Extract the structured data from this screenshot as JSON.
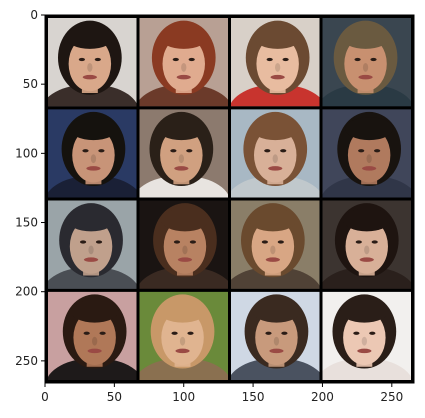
{
  "image": {
    "description_kind": "4x4 grid of generated face samples",
    "background_color": "#000000",
    "frame_color": "#000000"
  },
  "axes": {
    "x_ticks": [
      {
        "value": 0,
        "label": "0"
      },
      {
        "value": 50,
        "label": "50"
      },
      {
        "value": 100,
        "label": "100"
      },
      {
        "value": 150,
        "label": "150"
      },
      {
        "value": 200,
        "label": "200"
      },
      {
        "value": 250,
        "label": "250"
      }
    ],
    "y_ticks": [
      {
        "value": 0,
        "label": "0"
      },
      {
        "value": 50,
        "label": "50"
      },
      {
        "value": 100,
        "label": "100"
      },
      {
        "value": 150,
        "label": "150"
      },
      {
        "value": 200,
        "label": "200"
      },
      {
        "value": 250,
        "label": "250"
      }
    ],
    "x_range": [
      0,
      266
    ],
    "y_range": [
      0,
      266
    ]
  },
  "grid": {
    "rows": 4,
    "cols": 4,
    "cells": [
      {
        "bg": "#d8d4d0",
        "hair": "#1e1612",
        "skin": "#d9a88a",
        "cloth": "#3a2e2a"
      },
      {
        "bg": "#b8a094",
        "hair": "#8a3a22",
        "skin": "#e0ab8f",
        "cloth": "#6b3a2a"
      },
      {
        "bg": "#d8d0c8",
        "hair": "#6b4a32",
        "skin": "#e8bca0",
        "cloth": "#c8342e"
      },
      {
        "bg": "#3a4650",
        "hair": "#6a5a40",
        "skin": "#c89070",
        "cloth": "#2a3a44"
      },
      {
        "bg": "#2a3a64",
        "hair": "#15120e",
        "skin": "#c89478",
        "cloth": "#1a2036"
      },
      {
        "bg": "#8c7a6e",
        "hair": "#2a2018",
        "skin": "#d0a080",
        "cloth": "#e8e4e0"
      },
      {
        "bg": "#a8b8c4",
        "hair": "#7a5236",
        "skin": "#d8b098",
        "cloth": "#c0c8cc"
      },
      {
        "bg": "#40465a",
        "hair": "#18130f",
        "skin": "#b07a5e",
        "cloth": "#303648"
      },
      {
        "bg": "#9aa4a8",
        "hair": "#2a2a30",
        "skin": "#c0a08c",
        "cloth": "#4a4e54"
      },
      {
        "bg": "#1a1412",
        "hair": "#4a2e1e",
        "skin": "#b88262",
        "cloth": "#3a2a22"
      },
      {
        "bg": "#8a7e68",
        "hair": "#6a4a2e",
        "skin": "#d8a684",
        "cloth": "#504236"
      },
      {
        "bg": "#3c3430",
        "hair": "#1e1410",
        "skin": "#d8b098",
        "cloth": "#2a201c"
      },
      {
        "bg": "#c8a0a0",
        "hair": "#2a1a12",
        "skin": "#b07858",
        "cloth": "#1e1a1a"
      },
      {
        "bg": "#6a8a3a",
        "hair": "#c89868",
        "skin": "#e0b490",
        "cloth": "#8a7050"
      },
      {
        "bg": "#cfd8e4",
        "hair": "#3a2a20",
        "skin": "#c89a7c",
        "cloth": "#4a5260"
      },
      {
        "bg": "#f2f0ee",
        "hair": "#2a1e18",
        "skin": "#ecc8b4",
        "cloth": "#e8e0dc"
      }
    ]
  }
}
